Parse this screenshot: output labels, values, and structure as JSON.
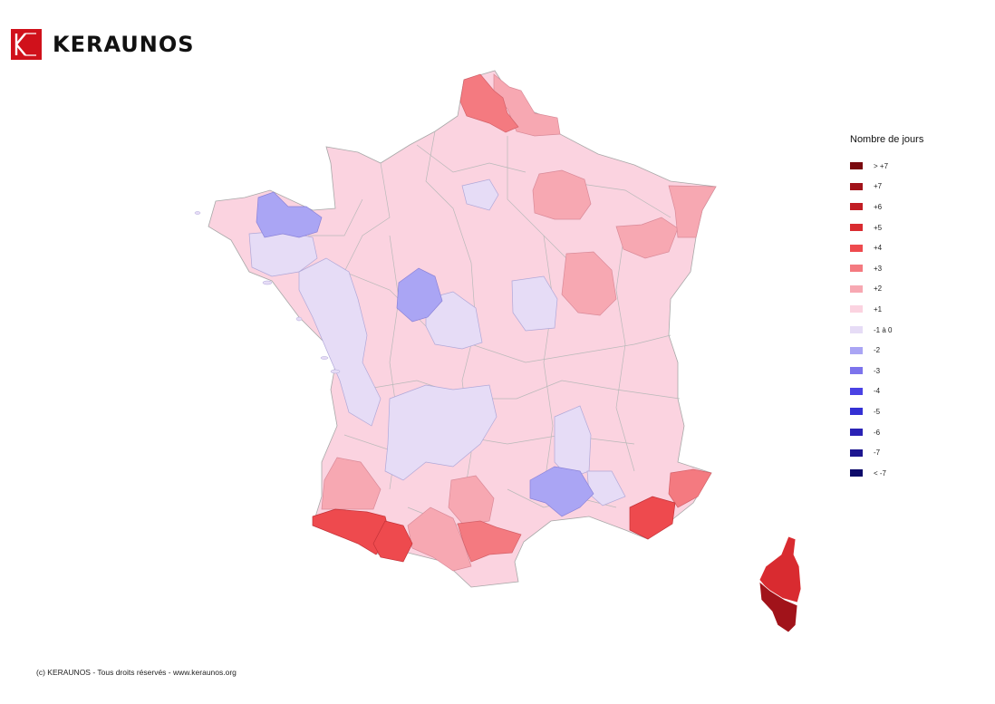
{
  "brand": {
    "name": "KERAUNOS",
    "logo_icon": "keraunos-k-logo",
    "color": "#d0111b"
  },
  "legend": {
    "title": "Nombre de jours",
    "items": [
      {
        "label": "> +7",
        "color": "#7a0a0f"
      },
      {
        "label": "+7",
        "color": "#a1131a"
      },
      {
        "label": "+6",
        "color": "#c11d24"
      },
      {
        "label": "+5",
        "color": "#d92b30"
      },
      {
        "label": "+4",
        "color": "#ee4a4e"
      },
      {
        "label": "+3",
        "color": "#f47a80"
      },
      {
        "label": "+2",
        "color": "#f7a8b2"
      },
      {
        "label": "+1",
        "color": "#fbd3e0"
      },
      {
        "label": "-1 à 0",
        "color": "#e6dcf6"
      },
      {
        "label": "-2",
        "color": "#aaa5f4"
      },
      {
        "label": "-3",
        "color": "#7c73ec"
      },
      {
        "label": "-4",
        "color": "#4a42e4"
      },
      {
        "label": "-5",
        "color": "#3430d4"
      },
      {
        "label": "-6",
        "color": "#2a22b5"
      },
      {
        "label": "-7",
        "color": "#1d1690"
      },
      {
        "label": "< -7",
        "color": "#0d0a6a"
      }
    ]
  },
  "map_regions": [
    {
      "name": "mainland-base",
      "level": "+1"
    },
    {
      "name": "nord",
      "level": "+3"
    },
    {
      "name": "pas-de-calais-east",
      "level": "+2"
    },
    {
      "name": "marne",
      "level": "+2"
    },
    {
      "name": "vosges",
      "level": "+2"
    },
    {
      "name": "bas-rhin",
      "level": "+2"
    },
    {
      "name": "cote-d-or",
      "level": "+2"
    },
    {
      "name": "landes",
      "level": "+2"
    },
    {
      "name": "pyrenees-atlantiques",
      "level": "+4"
    },
    {
      "name": "hautes-pyrenees",
      "level": "+4"
    },
    {
      "name": "haute-garonne",
      "level": "+2"
    },
    {
      "name": "aude",
      "level": "+3"
    },
    {
      "name": "tarn",
      "level": "+2"
    },
    {
      "name": "var",
      "level": "+4"
    },
    {
      "name": "alpes-maritimes",
      "level": "+3"
    },
    {
      "name": "haute-corse",
      "level": "+5"
    },
    {
      "name": "corse-du-sud",
      "level": "+7"
    },
    {
      "name": "cotes-d-armor",
      "level": "-2"
    },
    {
      "name": "loir-et-cher",
      "level": "-2"
    },
    {
      "name": "gard",
      "level": "-2"
    },
    {
      "name": "ille-et-vilaine",
      "level": "-1 à 0"
    },
    {
      "name": "west-coast",
      "level": "-1 à 0"
    },
    {
      "name": "cher-indre",
      "level": "-1 à 0"
    },
    {
      "name": "yonne-nievre",
      "level": "-1 à 0"
    },
    {
      "name": "limousin",
      "level": "-1 à 0"
    },
    {
      "name": "ardeche",
      "level": "-1 à 0"
    },
    {
      "name": "vaucluse",
      "level": "-1 à 0"
    },
    {
      "name": "paris",
      "level": "-1 à 0"
    }
  ],
  "footer": {
    "copyright": "(c) KERAUNOS - Tous droits réservés - www.keraunos.org"
  }
}
